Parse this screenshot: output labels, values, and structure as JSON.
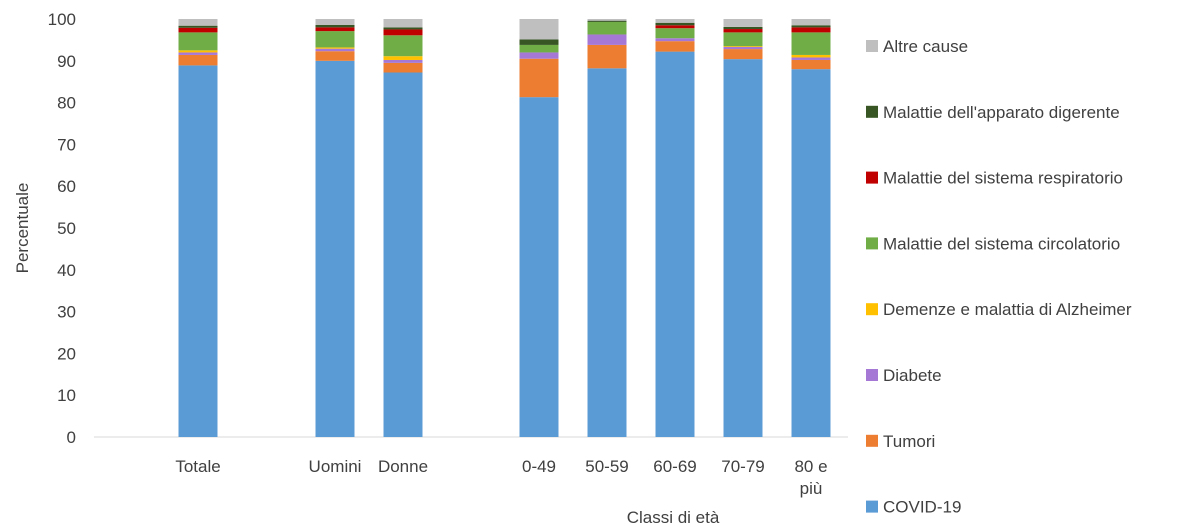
{
  "chart_data": {
    "type": "bar",
    "stacked": true,
    "title": "",
    "ylabel": "Percentuale",
    "xlabel": "Classi di età",
    "ylim": [
      0,
      100
    ],
    "yticks": [
      0,
      10,
      20,
      30,
      40,
      50,
      60,
      70,
      80,
      90,
      100
    ],
    "grid": false,
    "legend_position": "right",
    "categories": [
      "Totale",
      "Uomini",
      "Donne",
      "0-49",
      "50-59",
      "60-69",
      "70-79",
      "80 e più"
    ],
    "category_label_lines": [
      [
        "Totale"
      ],
      [
        "Uomini"
      ],
      [
        "Donne"
      ],
      [
        "0-49"
      ],
      [
        "50-59"
      ],
      [
        "60-69"
      ],
      [
        "70-79"
      ],
      [
        "80 e",
        "più"
      ]
    ],
    "series": [
      {
        "name": "COVID-19",
        "color": "#5b9bd5",
        "values": [
          88.9,
          90.0,
          87.2,
          81.3,
          88.2,
          92.2,
          90.4,
          88.0
        ]
      },
      {
        "name": "Tumori",
        "color": "#ed7d31",
        "values": [
          2.5,
          2.3,
          2.3,
          9.2,
          5.6,
          2.5,
          2.4,
          2.2
        ]
      },
      {
        "name": "Diabete",
        "color": "#a678d5",
        "values": [
          0.6,
          0.6,
          0.7,
          1.5,
          2.5,
          0.7,
          0.5,
          0.6
        ]
      },
      {
        "name": "Demenze e malattia di Alzheimer",
        "color": "#ffc000",
        "values": [
          0.5,
          0.3,
          0.9,
          0.0,
          0.0,
          0.0,
          0.2,
          0.6
        ]
      },
      {
        "name": "Malattie del sistema circolatorio",
        "color": "#70ad47",
        "values": [
          4.3,
          3.9,
          5.0,
          1.8,
          3.0,
          2.4,
          3.3,
          5.4
        ]
      },
      {
        "name": "Malattie del sistema respiratorio",
        "color": "#c00000",
        "values": [
          1.1,
          0.9,
          1.4,
          0.0,
          0.0,
          0.7,
          0.8,
          1.2
        ]
      },
      {
        "name": "Malattie dell'apparato digerente",
        "color": "#375623",
        "values": [
          0.5,
          0.6,
          0.5,
          1.3,
          0.3,
          0.6,
          0.5,
          0.5
        ]
      },
      {
        "name": "Altre cause",
        "color": "#bfbfbf",
        "values": [
          1.6,
          1.4,
          2.0,
          4.9,
          0.4,
          0.9,
          1.9,
          1.5
        ]
      }
    ]
  }
}
